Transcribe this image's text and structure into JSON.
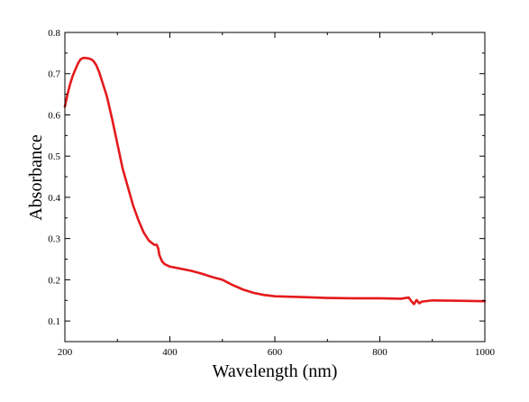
{
  "chart_data": {
    "type": "line",
    "title": "",
    "xlabel": "Wavelength (nm)",
    "ylabel": "Absorbance",
    "xlim": [
      200,
      1000
    ],
    "ylim": [
      0.05,
      0.8
    ],
    "x_ticks": [
      200,
      400,
      600,
      800,
      1000
    ],
    "y_ticks": [
      0.1,
      0.2,
      0.3,
      0.4,
      0.5,
      0.6,
      0.7,
      0.8
    ],
    "grid": false,
    "legend": "none",
    "series": [
      {
        "color": "#e41a1c",
        "x": [
          200,
          205,
          210,
          215,
          220,
          225,
          230,
          235,
          240,
          245,
          250,
          255,
          260,
          265,
          270,
          280,
          290,
          300,
          310,
          320,
          330,
          340,
          350,
          360,
          370,
          375,
          378,
          380,
          385,
          390,
          400,
          420,
          440,
          460,
          480,
          500,
          520,
          540,
          560,
          580,
          600,
          650,
          700,
          750,
          800,
          840,
          855,
          860,
          865,
          870,
          875,
          880,
          900,
          950,
          1000
        ],
        "y": [
          0.62,
          0.65,
          0.675,
          0.695,
          0.71,
          0.725,
          0.735,
          0.738,
          0.738,
          0.737,
          0.735,
          0.73,
          0.72,
          0.705,
          0.685,
          0.645,
          0.59,
          0.53,
          0.47,
          0.425,
          0.38,
          0.345,
          0.315,
          0.295,
          0.285,
          0.285,
          0.275,
          0.26,
          0.245,
          0.238,
          0.232,
          0.227,
          0.222,
          0.215,
          0.207,
          0.2,
          0.187,
          0.176,
          0.168,
          0.163,
          0.16,
          0.158,
          0.156,
          0.155,
          0.155,
          0.154,
          0.157,
          0.148,
          0.141,
          0.151,
          0.143,
          0.147,
          0.15,
          0.149,
          0.148
        ]
      }
    ]
  }
}
